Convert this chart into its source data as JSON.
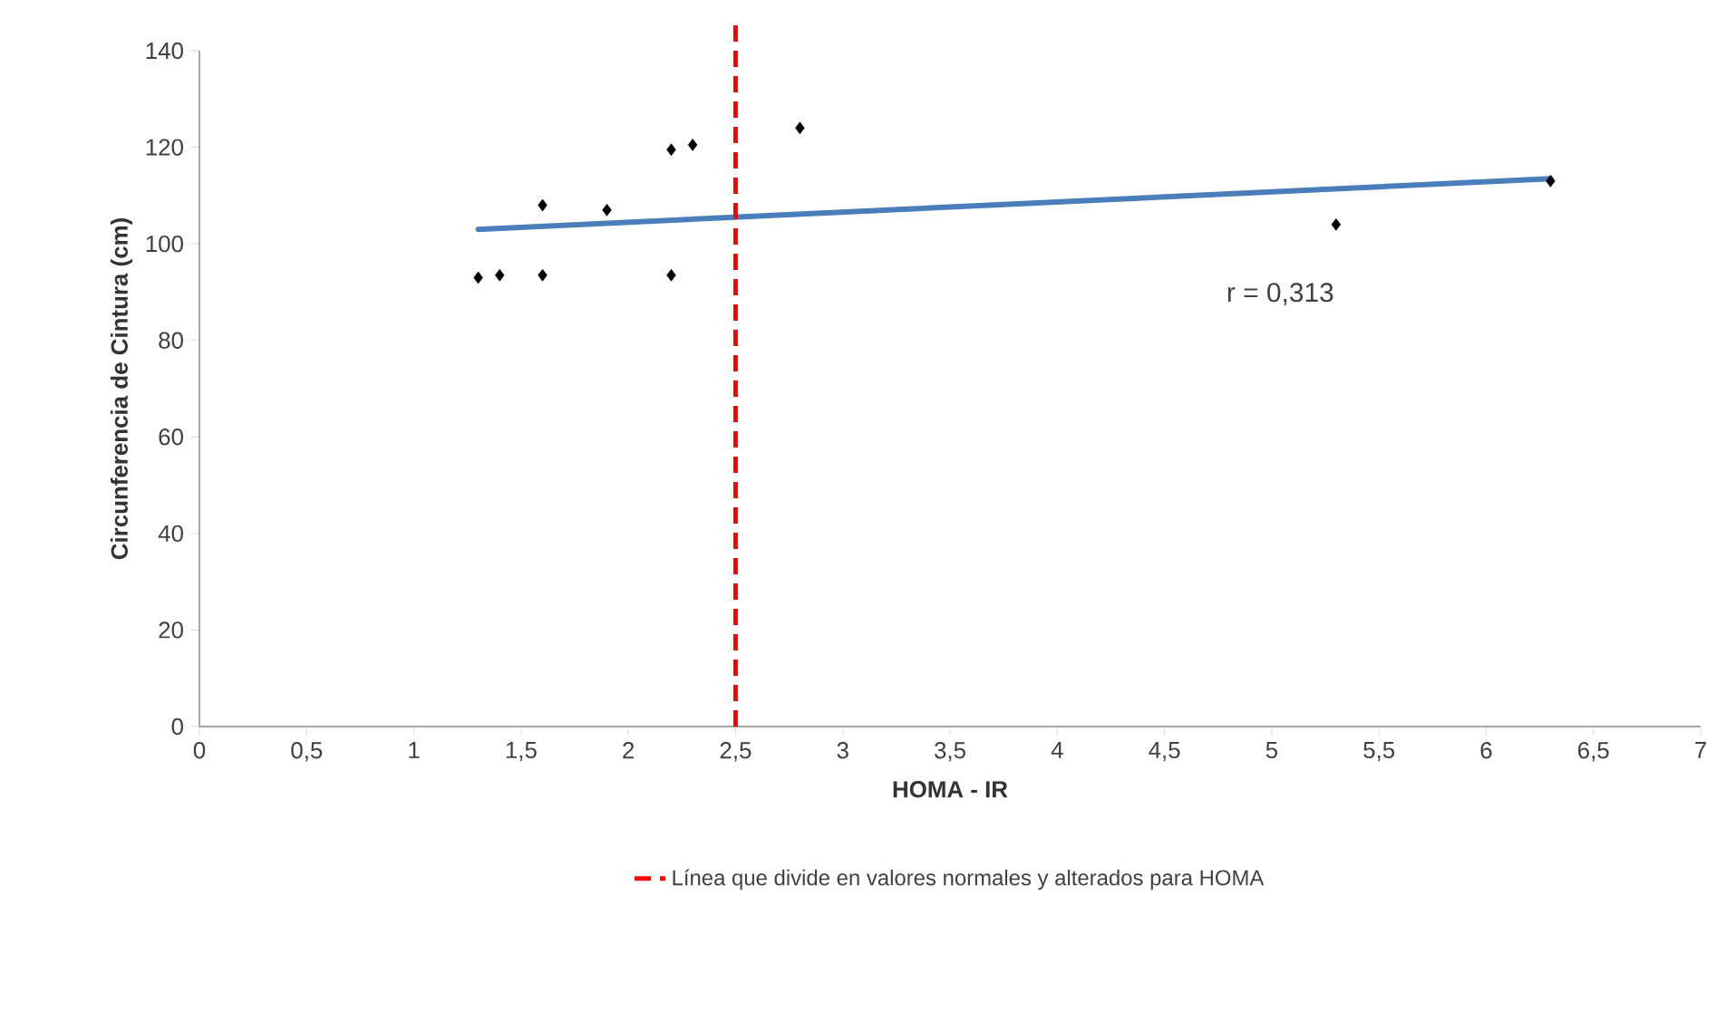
{
  "chart_data": {
    "type": "scatter",
    "xlabel": "HOMA - IR",
    "ylabel": "Circunferencia de Cintura (cm)",
    "annotations": [
      "r = 0,313"
    ],
    "xlim": [
      0,
      7
    ],
    "xticks": [
      0,
      {
        "value": 0.5,
        "label": "0,5"
      },
      1,
      {
        "value": 1.5,
        "label": "1,5"
      },
      2,
      {
        "value": 2.5,
        "label": "2,5"
      },
      3,
      {
        "value": 3.5,
        "label": "3,5"
      },
      4,
      {
        "value": 4.5,
        "label": "4,5"
      },
      5,
      {
        "value": 5.5,
        "label": "5,5"
      },
      6,
      {
        "value": 6.5,
        "label": "6,5"
      },
      7
    ],
    "ylim": [
      0,
      140
    ],
    "yticks": [
      0,
      20,
      40,
      60,
      80,
      100,
      120,
      140
    ],
    "grid": false,
    "legend": "bottom",
    "series": [
      {
        "marker": "diamond",
        "color": "#000000",
        "x": [
          1.3,
          1.4,
          1.6,
          1.6,
          1.9,
          2.2,
          2.2,
          2.3,
          2.8,
          5.3,
          6.3
        ],
        "values": [
          93,
          93.5,
          108,
          93.5,
          107,
          119.5,
          93.5,
          120.5,
          124,
          104,
          113
        ]
      },
      {
        "type": "line",
        "marker": "none",
        "color": "#4a7ebb",
        "x": [
          1.3,
          6.3
        ],
        "values": [
          103,
          113.5
        ]
      }
    ],
    "ref_lines": [
      {
        "axis": "x",
        "value": 2.5,
        "label": "Línea  que divide en valores normales y alterados para HOMA",
        "color": "#ff0000",
        "line_style": "dashed"
      }
    ]
  }
}
